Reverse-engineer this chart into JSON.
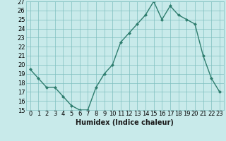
{
  "x": [
    0,
    1,
    2,
    3,
    4,
    5,
    6,
    7,
    8,
    9,
    10,
    11,
    12,
    13,
    14,
    15,
    16,
    17,
    18,
    19,
    20,
    21,
    22,
    23
  ],
  "y": [
    19.5,
    18.5,
    17.5,
    17.5,
    16.5,
    15.5,
    15.0,
    15.0,
    17.5,
    19.0,
    20.0,
    22.5,
    23.5,
    24.5,
    25.5,
    27.0,
    25.0,
    26.5,
    25.5,
    25.0,
    24.5,
    21.0,
    18.5,
    17.0
  ],
  "line_color": "#2e7d6e",
  "marker": "D",
  "marker_size": 2,
  "bg_color": "#c8eaea",
  "grid_color": "#7fbfbf",
  "xlabel": "Humidex (Indice chaleur)",
  "xlabel_fontsize": 7,
  "ylim": [
    15,
    27
  ],
  "xlim_min": -0.5,
  "xlim_max": 23.5,
  "yticks": [
    15,
    16,
    17,
    18,
    19,
    20,
    21,
    22,
    23,
    24,
    25,
    26,
    27
  ],
  "xticks": [
    0,
    1,
    2,
    3,
    4,
    5,
    6,
    7,
    8,
    9,
    10,
    11,
    12,
    13,
    14,
    15,
    16,
    17,
    18,
    19,
    20,
    21,
    22,
    23
  ],
  "tick_label_fontsize": 6,
  "line_width": 1.0
}
